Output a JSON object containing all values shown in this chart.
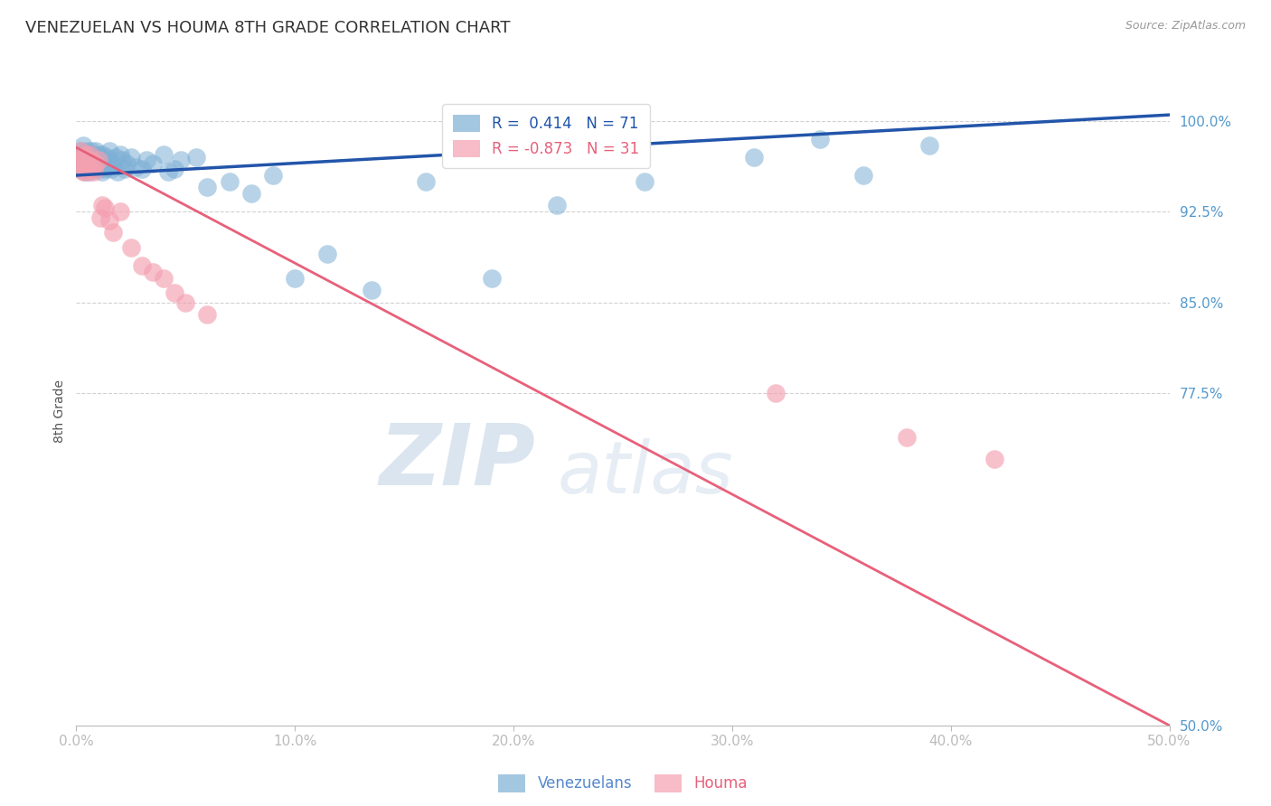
{
  "title": "VENEZUELAN VS HOUMA 8TH GRADE CORRELATION CHART",
  "source": "Source: ZipAtlas.com",
  "ylabel": "8th Grade",
  "xlim": [
    0.0,
    0.5
  ],
  "ylim": [
    0.5,
    1.02
  ],
  "xticks": [
    0.0,
    0.1,
    0.2,
    0.3,
    0.4,
    0.5
  ],
  "xtick_labels": [
    "0.0%",
    "10.0%",
    "20.0%",
    "30.0%",
    "40.0%",
    "50.0%"
  ],
  "yticks": [
    0.5,
    0.775,
    0.85,
    0.925,
    1.0
  ],
  "ytick_labels": [
    "50.0%",
    "77.5%",
    "85.0%",
    "92.5%",
    "100.0%"
  ],
  "venezuelan_R": 0.414,
  "venezuelan_N": 71,
  "houma_R": -0.873,
  "houma_N": 31,
  "blue_color": "#7EB0D5",
  "pink_color": "#F4A0B0",
  "blue_line_color": "#2255AA",
  "pink_line_color": "#E8607A",
  "watermark_zip": "ZIP",
  "watermark_atlas": "atlas",
  "blue_line_y0": 0.955,
  "blue_line_y1": 1.005,
  "pink_line_y0": 0.978,
  "pink_line_y1": 0.5,
  "venezuelan_x": [
    0.001,
    0.001,
    0.002,
    0.002,
    0.002,
    0.003,
    0.003,
    0.003,
    0.004,
    0.004,
    0.004,
    0.005,
    0.005,
    0.005,
    0.006,
    0.006,
    0.006,
    0.007,
    0.007,
    0.007,
    0.008,
    0.008,
    0.008,
    0.009,
    0.009,
    0.01,
    0.01,
    0.01,
    0.011,
    0.011,
    0.012,
    0.012,
    0.013,
    0.013,
    0.014,
    0.014,
    0.015,
    0.015,
    0.016,
    0.017,
    0.018,
    0.019,
    0.02,
    0.021,
    0.022,
    0.023,
    0.025,
    0.027,
    0.03,
    0.032,
    0.035,
    0.04,
    0.042,
    0.045,
    0.048,
    0.055,
    0.06,
    0.07,
    0.08,
    0.09,
    0.1,
    0.115,
    0.135,
    0.16,
    0.19,
    0.22,
    0.26,
    0.31,
    0.34,
    0.36,
    0.39
  ],
  "venezuelan_y": [
    0.965,
    0.972,
    0.968,
    0.975,
    0.96,
    0.97,
    0.962,
    0.98,
    0.965,
    0.958,
    0.972,
    0.968,
    0.975,
    0.96,
    0.97,
    0.962,
    0.958,
    0.972,
    0.968,
    0.975,
    0.965,
    0.96,
    0.97,
    0.962,
    0.975,
    0.968,
    0.96,
    0.972,
    0.965,
    0.97,
    0.958,
    0.972,
    0.965,
    0.96,
    0.97,
    0.962,
    0.968,
    0.975,
    0.96,
    0.965,
    0.97,
    0.958,
    0.972,
    0.968,
    0.96,
    0.965,
    0.97,
    0.962,
    0.96,
    0.968,
    0.965,
    0.972,
    0.958,
    0.96,
    0.968,
    0.97,
    0.945,
    0.95,
    0.94,
    0.955,
    0.87,
    0.89,
    0.86,
    0.95,
    0.87,
    0.93,
    0.95,
    0.97,
    0.985,
    0.955,
    0.98
  ],
  "houma_x": [
    0.001,
    0.002,
    0.002,
    0.003,
    0.003,
    0.004,
    0.004,
    0.005,
    0.005,
    0.006,
    0.006,
    0.007,
    0.008,
    0.009,
    0.01,
    0.011,
    0.012,
    0.013,
    0.015,
    0.017,
    0.02,
    0.025,
    0.03,
    0.035,
    0.04,
    0.045,
    0.05,
    0.06,
    0.32,
    0.38,
    0.42
  ],
  "houma_y": [
    0.968,
    0.96,
    0.975,
    0.958,
    0.97,
    0.962,
    0.972,
    0.965,
    0.958,
    0.968,
    0.972,
    0.96,
    0.958,
    0.965,
    0.968,
    0.92,
    0.93,
    0.928,
    0.918,
    0.908,
    0.925,
    0.895,
    0.88,
    0.875,
    0.87,
    0.858,
    0.85,
    0.84,
    0.775,
    0.738,
    0.72
  ]
}
